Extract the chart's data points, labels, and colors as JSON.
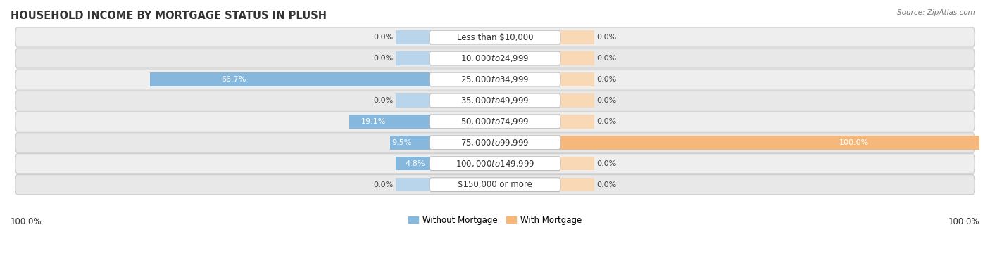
{
  "title": "HOUSEHOLD INCOME BY MORTGAGE STATUS IN PLUSH",
  "source": "Source: ZipAtlas.com",
  "categories": [
    "Less than $10,000",
    "$10,000 to $24,999",
    "$25,000 to $34,999",
    "$35,000 to $49,999",
    "$50,000 to $74,999",
    "$75,000 to $99,999",
    "$100,000 to $149,999",
    "$150,000 or more"
  ],
  "without_mortgage": [
    0.0,
    0.0,
    66.7,
    0.0,
    19.1,
    9.5,
    4.8,
    0.0
  ],
  "with_mortgage": [
    0.0,
    0.0,
    0.0,
    0.0,
    0.0,
    100.0,
    0.0,
    0.0
  ],
  "color_without": "#85b8dc",
  "color_with": "#f5b87a",
  "color_without_dim": "#b8d5ec",
  "color_with_dim": "#f9d9b5",
  "bg_row_even": "#efefef",
  "bg_row_odd": "#e6e6e6",
  "max_val": 100.0,
  "legend_labels": [
    "Without Mortgage",
    "With Mortgage"
  ],
  "left_label": "100.0%",
  "right_label": "100.0%",
  "title_fontsize": 10.5,
  "label_fontsize": 8,
  "category_fontsize": 8.5,
  "source_fontsize": 7.5
}
